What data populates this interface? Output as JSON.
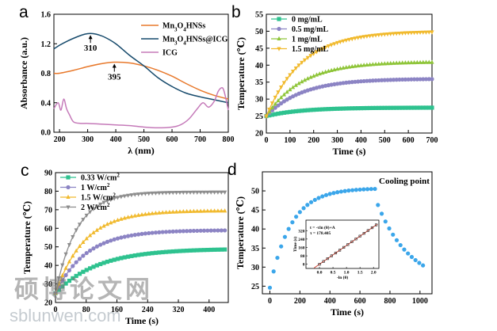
{
  "chart_data": [
    {
      "panel": "a",
      "type": "line",
      "xlabel": "λ (nm)",
      "ylabel": "Absorbance (a.u.)",
      "xlim": [
        180,
        800
      ],
      "ylim": [
        0,
        1.6
      ],
      "xticks": [
        200,
        300,
        400,
        500,
        600,
        700,
        800
      ],
      "yticks": [
        0.0,
        0.4,
        0.8,
        1.2,
        1.6
      ],
      "ytick_labels": [
        "0.0",
        "0.4",
        "0.8",
        "1.2",
        "1.6"
      ],
      "legend": "top-right",
      "series": [
        {
          "name": "Mn3O4HNSs",
          "color": "#e8792c",
          "x": [
            180,
            200,
            250,
            300,
            350,
            395,
            450,
            500,
            550,
            600,
            650,
            700,
            750,
            800
          ],
          "y": [
            0.8,
            0.8,
            0.84,
            0.89,
            0.93,
            0.95,
            0.94,
            0.9,
            0.84,
            0.76,
            0.66,
            0.57,
            0.5,
            0.45
          ]
        },
        {
          "name": "Mn3O4HNSs@ICG",
          "color": "#15496b",
          "x": [
            180,
            200,
            230,
            260,
            290,
            310,
            330,
            360,
            400,
            450,
            500,
            550,
            600,
            650,
            700,
            750,
            800
          ],
          "y": [
            1.13,
            1.18,
            1.24,
            1.29,
            1.33,
            1.34,
            1.33,
            1.29,
            1.2,
            1.04,
            0.9,
            0.74,
            0.62,
            0.53,
            0.48,
            0.44,
            0.4
          ]
        },
        {
          "name": "ICG",
          "color": "#c57ab9",
          "x": [
            180,
            195,
            205,
            215,
            225,
            235,
            250,
            275,
            300,
            350,
            400,
            450,
            500,
            550,
            600,
            630,
            660,
            690,
            710,
            730,
            750,
            765,
            780,
            790,
            800
          ],
          "y": [
            0.32,
            0.4,
            0.3,
            0.45,
            0.32,
            0.24,
            0.14,
            0.12,
            0.12,
            0.11,
            0.1,
            0.09,
            0.07,
            0.06,
            0.07,
            0.1,
            0.18,
            0.32,
            0.4,
            0.34,
            0.42,
            0.56,
            0.6,
            0.48,
            0.3
          ]
        }
      ],
      "annotations": [
        {
          "text": "310",
          "x": 310,
          "y": 1.34
        },
        {
          "text": "395",
          "x": 395,
          "y": 0.95
        }
      ]
    },
    {
      "panel": "b",
      "type": "line",
      "xlabel": "Time (s)",
      "ylabel": "Temperature (℃)",
      "xlim": [
        0,
        700
      ],
      "ylim": [
        20,
        55
      ],
      "xticks": [
        0,
        100,
        200,
        300,
        400,
        500,
        600,
        700
      ],
      "yticks": [
        20,
        25,
        30,
        35,
        40,
        45,
        50,
        55
      ],
      "legend": "top-left",
      "model": {
        "start": 25,
        "tau": 150,
        "points": 57,
        "step": 12.5
      },
      "series": [
        {
          "name": "0   mg/mL",
          "color": "#2ec28f",
          "marker": "square",
          "plateau": 27.5
        },
        {
          "name": "0.5 mg/mL",
          "color": "#8c84c4",
          "marker": "circle",
          "plateau": 36.0
        },
        {
          "name": "1   mg/mL",
          "color": "#8fc53a",
          "marker": "triangle-up",
          "plateau": 41.0
        },
        {
          "name": "1.5 mg/mL",
          "color": "#f1ba2e",
          "marker": "triangle-down",
          "plateau": 50.0
        }
      ]
    },
    {
      "panel": "c",
      "type": "line",
      "xlabel": "Time (s)",
      "ylabel": "Temperature (℃)",
      "xlim": [
        0,
        450
      ],
      "ylim": [
        20,
        90
      ],
      "xticks": [
        0,
        80,
        160,
        240,
        320,
        400
      ],
      "yticks": [
        20,
        30,
        40,
        50,
        60,
        70,
        80,
        90
      ],
      "legend": "top-left",
      "model": {
        "start": 25,
        "points": 50,
        "step": 9
      },
      "series": [
        {
          "name": "0.33  W/cm2",
          "label_main": "0.33  W/cm",
          "sup": "2",
          "color": "#2ec28f",
          "marker": "square",
          "plateau": 49.0,
          "tau": 110
        },
        {
          "name": "1     W/cm2",
          "label_main": "1     W/cm",
          "sup": "2",
          "color": "#8c84c4",
          "marker": "circle",
          "plateau": 59.0,
          "tau": 80
        },
        {
          "name": "1.5   W/cm2",
          "label_main": "1.5   W/cm",
          "sup": "2",
          "color": "#f1ba2e",
          "marker": "triangle-up",
          "plateau": 69.5,
          "tau": 75
        },
        {
          "name": "2     W/cm2",
          "label_main": "2     W/cm",
          "sup": "2",
          "color": "#8d8d8d",
          "marker": "triangle-down",
          "plateau": 79.5,
          "tau": 55
        }
      ]
    },
    {
      "panel": "d",
      "type": "scatter",
      "xlabel": "Time (s)",
      "ylabel": "Temperature (℃)",
      "xlim": [
        -50,
        1080
      ],
      "ylim": [
        23,
        55
      ],
      "xticks": [
        0,
        200,
        400,
        600,
        800,
        1000
      ],
      "yticks": [
        25,
        30,
        35,
        40,
        45,
        50
      ],
      "color": "#3ba6ea",
      "heating": {
        "start": 24.6,
        "plateau": 50.7,
        "tau": 140,
        "from": 0,
        "to": 700,
        "step": 25
      },
      "cooling": {
        "start": 46.3,
        "end": 25.0,
        "tau": 220,
        "from": 720,
        "to": 1040,
        "step": 25
      },
      "annotation": "Cooling point",
      "inset": {
        "xlabel": "-ln (θ)",
        "ylabel": "Time (s)",
        "xlim": [
          -0.5,
          2.2
        ],
        "ylim": [
          -40,
          420
        ],
        "xticks": [
          0.0,
          0.5,
          1.0,
          1.5,
          2.0
        ],
        "xtick_labels": [
          "0.0",
          "0.5",
          "1.0",
          "1.5",
          "2.0"
        ],
        "yticks": [
          0,
          80,
          160,
          240,
          320
        ],
        "equation": "t = -τln (θ)+A",
        "tau_text": "τ = 178.405",
        "fit": {
          "slope": 178.405,
          "intercept": 0,
          "from": -0.2,
          "to": 2.15
        },
        "points_x": [
          0.0,
          0.15,
          0.3,
          0.45,
          0.6,
          0.75,
          0.9,
          1.05,
          1.2,
          1.35,
          1.5,
          1.65,
          1.8,
          1.95,
          2.1
        ]
      }
    }
  ],
  "watermark": {
    "chinese": "硕博论文网",
    "english": "sblunwen.com"
  }
}
